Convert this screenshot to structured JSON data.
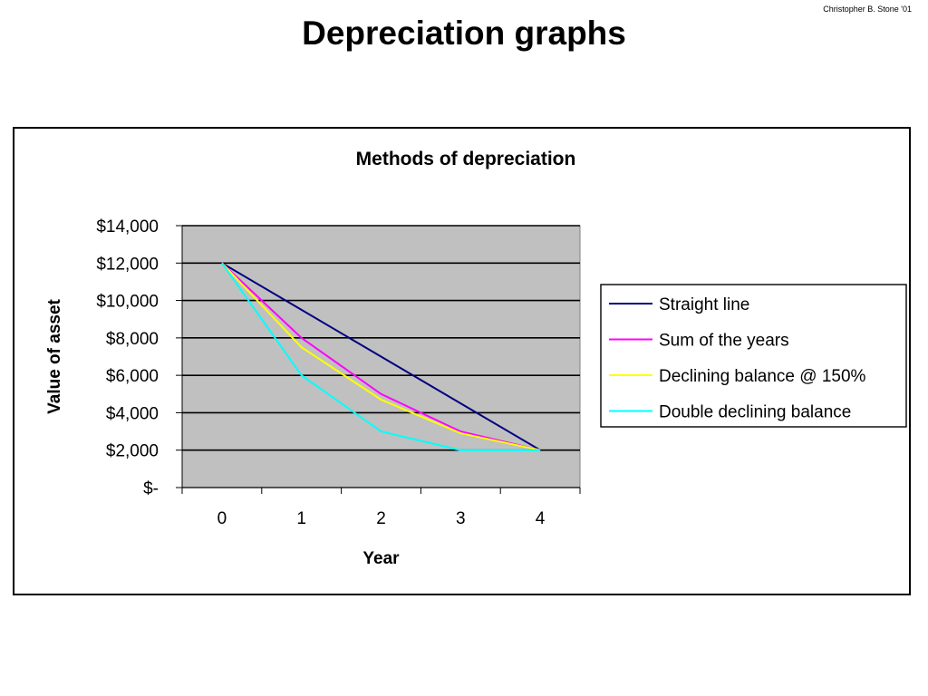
{
  "slide": {
    "title": "Depreciation graphs",
    "credit": "Christopher B. Stone '01"
  },
  "colors": {
    "plot_background": "#c0c0c0",
    "straight_line": "#000080",
    "sum_of_years": "#ff00ff",
    "declining_150": "#ffff00",
    "double_declining": "#00ffff"
  },
  "chart_data": {
    "type": "line",
    "title": "Methods of depreciation",
    "xlabel": "Year",
    "ylabel": "Value of asset",
    "categories": [
      "0",
      "1",
      "2",
      "3",
      "4"
    ],
    "ylim": [
      0,
      14000
    ],
    "y_ticks": [
      0,
      2000,
      4000,
      6000,
      8000,
      10000,
      12000,
      14000
    ],
    "y_tick_labels": [
      "$-",
      "$2,000",
      "$4,000",
      "$6,000",
      "$8,000",
      "$10,000",
      "$12,000",
      "$14,000"
    ],
    "grid": true,
    "legend_position": "right",
    "series": [
      {
        "name": "Straight line",
        "color": "#000080",
        "values": [
          12000,
          9500,
          7000,
          4500,
          2000
        ]
      },
      {
        "name": "Sum of the years",
        "color": "#ff00ff",
        "values": [
          12000,
          8000,
          5000,
          3000,
          2000
        ]
      },
      {
        "name": "Declining balance @ 150%",
        "color": "#ffff00",
        "values": [
          12000,
          7500,
          4700,
          2900,
          2000
        ]
      },
      {
        "name": "Double declining balance",
        "color": "#00ffff",
        "values": [
          12000,
          6000,
          3000,
          2000,
          2000
        ]
      }
    ]
  }
}
